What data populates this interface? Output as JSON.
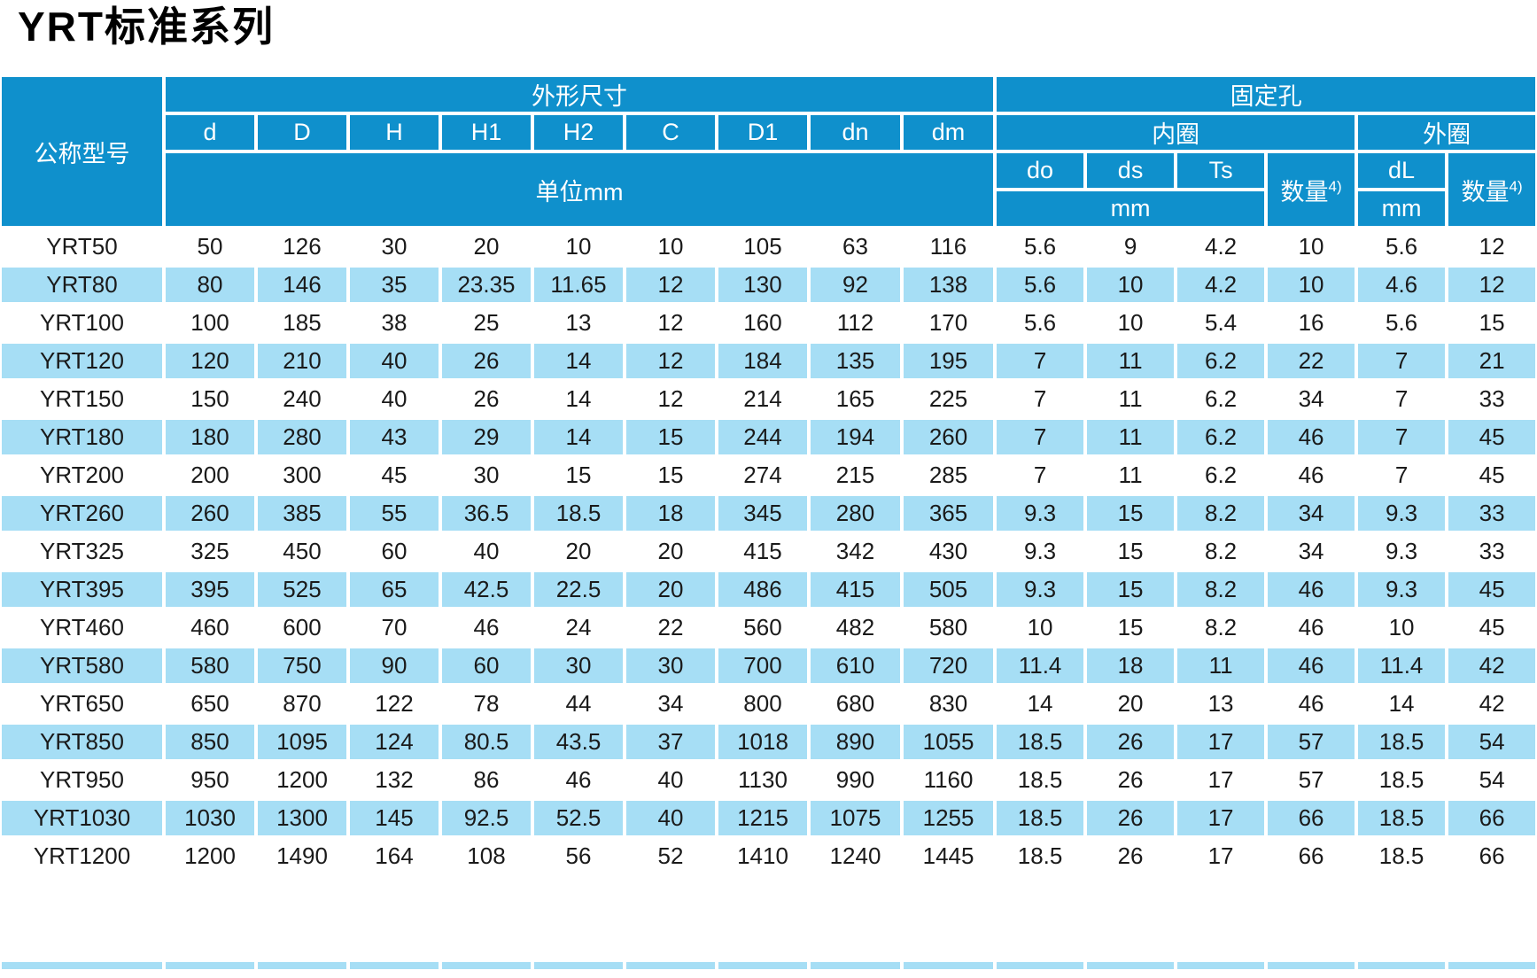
{
  "page_title": "YRT标准系列",
  "colors": {
    "header_blue": "#0f90cc",
    "row_blue": "#a6def5",
    "text": "#1a1a1a"
  },
  "table": {
    "header": {
      "model_col": "公称型号",
      "dims_group": "外形尺寸",
      "holes_group": "固定孔",
      "dim_cols": [
        "d",
        "D",
        "H",
        "H1",
        "H2",
        "C",
        "D1",
        "dn",
        "dm"
      ],
      "dims_unit": "单位mm",
      "inner_ring": "内圈",
      "outer_ring": "外圈",
      "inner_cols": [
        "do",
        "ds",
        "Ts"
      ],
      "qty_label": "数量",
      "qty_sup": "4)",
      "outer_dia_col": "dL",
      "mm_label": "mm"
    },
    "rows": [
      {
        "model": "YRT50",
        "values": [
          "50",
          "126",
          "30",
          "20",
          "10",
          "10",
          "105",
          "63",
          "116",
          "5.6",
          "9",
          "4.2",
          "10",
          "5.6",
          "12"
        ]
      },
      {
        "model": "YRT80",
        "values": [
          "80",
          "146",
          "35",
          "23.35",
          "11.65",
          "12",
          "130",
          "92",
          "138",
          "5.6",
          "10",
          "4.2",
          "10",
          "4.6",
          "12"
        ]
      },
      {
        "model": "YRT100",
        "values": [
          "100",
          "185",
          "38",
          "25",
          "13",
          "12",
          "160",
          "112",
          "170",
          "5.6",
          "10",
          "5.4",
          "16",
          "5.6",
          "15"
        ]
      },
      {
        "model": "YRT120",
        "values": [
          "120",
          "210",
          "40",
          "26",
          "14",
          "12",
          "184",
          "135",
          "195",
          "7",
          "11",
          "6.2",
          "22",
          "7",
          "21"
        ]
      },
      {
        "model": "YRT150",
        "values": [
          "150",
          "240",
          "40",
          "26",
          "14",
          "12",
          "214",
          "165",
          "225",
          "7",
          "11",
          "6.2",
          "34",
          "7",
          "33"
        ]
      },
      {
        "model": "YRT180",
        "values": [
          "180",
          "280",
          "43",
          "29",
          "14",
          "15",
          "244",
          "194",
          "260",
          "7",
          "11",
          "6.2",
          "46",
          "7",
          "45"
        ]
      },
      {
        "model": "YRT200",
        "values": [
          "200",
          "300",
          "45",
          "30",
          "15",
          "15",
          "274",
          "215",
          "285",
          "7",
          "11",
          "6.2",
          "46",
          "7",
          "45"
        ]
      },
      {
        "model": "YRT260",
        "values": [
          "260",
          "385",
          "55",
          "36.5",
          "18.5",
          "18",
          "345",
          "280",
          "365",
          "9.3",
          "15",
          "8.2",
          "34",
          "9.3",
          "33"
        ]
      },
      {
        "model": "YRT325",
        "values": [
          "325",
          "450",
          "60",
          "40",
          "20",
          "20",
          "415",
          "342",
          "430",
          "9.3",
          "15",
          "8.2",
          "34",
          "9.3",
          "33"
        ]
      },
      {
        "model": "YRT395",
        "values": [
          "395",
          "525",
          "65",
          "42.5",
          "22.5",
          "20",
          "486",
          "415",
          "505",
          "9.3",
          "15",
          "8.2",
          "46",
          "9.3",
          "45"
        ]
      },
      {
        "model": "YRT460",
        "values": [
          "460",
          "600",
          "70",
          "46",
          "24",
          "22",
          "560",
          "482",
          "580",
          "10",
          "15",
          "8.2",
          "46",
          "10",
          "45"
        ]
      },
      {
        "model": "YRT580",
        "values": [
          "580",
          "750",
          "90",
          "60",
          "30",
          "30",
          "700",
          "610",
          "720",
          "11.4",
          "18",
          "11",
          "46",
          "11.4",
          "42"
        ]
      },
      {
        "model": "YRT650",
        "values": [
          "650",
          "870",
          "122",
          "78",
          "44",
          "34",
          "800",
          "680",
          "830",
          "14",
          "20",
          "13",
          "46",
          "14",
          "42"
        ]
      },
      {
        "model": "YRT850",
        "values": [
          "850",
          "1095",
          "124",
          "80.5",
          "43.5",
          "37",
          "1018",
          "890",
          "1055",
          "18.5",
          "26",
          "17",
          "57",
          "18.5",
          "54"
        ]
      },
      {
        "model": "YRT950",
        "values": [
          "950",
          "1200",
          "132",
          "86",
          "46",
          "40",
          "1130",
          "990",
          "1160",
          "18.5",
          "26",
          "17",
          "57",
          "18.5",
          "54"
        ]
      },
      {
        "model": "YRT1030",
        "values": [
          "1030",
          "1300",
          "145",
          "92.5",
          "52.5",
          "40",
          "1215",
          "1075",
          "1255",
          "18.5",
          "26",
          "17",
          "66",
          "18.5",
          "66"
        ]
      },
      {
        "model": "YRT1200",
        "values": [
          "1200",
          "1490",
          "164",
          "108",
          "56",
          "52",
          "1410",
          "1240",
          "1445",
          "18.5",
          "26",
          "17",
          "66",
          "18.5",
          "66"
        ]
      }
    ]
  }
}
